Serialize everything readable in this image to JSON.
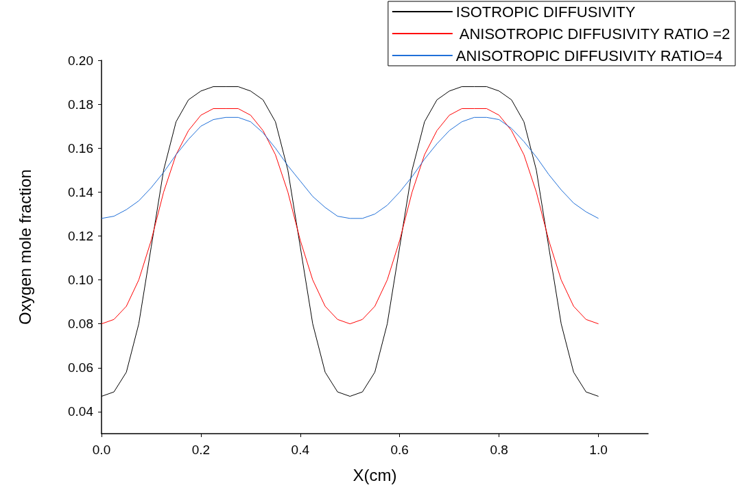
{
  "chart_data": {
    "type": "line",
    "xlabel": "X(cm)",
    "ylabel": "Oxygen mole fraction",
    "x": [
      0,
      0.025,
      0.05,
      0.075,
      0.1,
      0.125,
      0.15,
      0.175,
      0.2,
      0.225,
      0.25,
      0.275,
      0.3,
      0.325,
      0.35,
      0.375,
      0.4,
      0.425,
      0.45,
      0.475,
      0.5,
      0.525,
      0.55,
      0.575,
      0.6,
      0.625,
      0.65,
      0.675,
      0.7,
      0.725,
      0.75,
      0.775,
      0.8,
      0.825,
      0.85,
      0.875,
      0.9,
      0.925,
      0.95,
      0.975,
      1.0
    ],
    "series": [
      {
        "name": "ISOTROPIC DIFFUSIVITY",
        "color": "#000000",
        "values": [
          0.047,
          0.049,
          0.058,
          0.08,
          0.115,
          0.15,
          0.172,
          0.182,
          0.186,
          0.188,
          0.188,
          0.188,
          0.186,
          0.182,
          0.172,
          0.15,
          0.115,
          0.08,
          0.058,
          0.049,
          0.047,
          0.049,
          0.058,
          0.08,
          0.115,
          0.15,
          0.172,
          0.182,
          0.186,
          0.188,
          0.188,
          0.188,
          0.186,
          0.182,
          0.172,
          0.15,
          0.115,
          0.08,
          0.058,
          0.049,
          0.047
        ]
      },
      {
        "name": " ANISOTROPIC DIFFUSIVITY RATIO =2",
        "color": "#ff0000",
        "values": [
          0.08,
          0.082,
          0.088,
          0.1,
          0.118,
          0.14,
          0.157,
          0.168,
          0.175,
          0.178,
          0.178,
          0.178,
          0.175,
          0.168,
          0.157,
          0.14,
          0.118,
          0.1,
          0.088,
          0.082,
          0.08,
          0.082,
          0.088,
          0.1,
          0.118,
          0.14,
          0.157,
          0.168,
          0.175,
          0.178,
          0.178,
          0.178,
          0.175,
          0.168,
          0.157,
          0.14,
          0.118,
          0.1,
          0.088,
          0.082,
          0.08
        ]
      },
      {
        "name": "ANISOTROPIC DIFFUSIVITY RATIO=4",
        "color": "#1f6fd8",
        "values": [
          0.128,
          0.129,
          0.132,
          0.136,
          0.142,
          0.149,
          0.157,
          0.164,
          0.17,
          0.173,
          0.174,
          0.174,
          0.172,
          0.167,
          0.16,
          0.152,
          0.145,
          0.138,
          0.133,
          0.129,
          0.128,
          0.128,
          0.13,
          0.134,
          0.14,
          0.147,
          0.155,
          0.162,
          0.168,
          0.172,
          0.174,
          0.174,
          0.173,
          0.169,
          0.163,
          0.156,
          0.148,
          0.141,
          0.135,
          0.131,
          0.128
        ]
      }
    ],
    "xlim": [
      0,
      1.1
    ],
    "xticks": [
      {
        "value": 0,
        "label": "0.0"
      },
      0.2,
      0.4,
      0.6,
      0.8,
      {
        "value": 1,
        "label": "1.0"
      }
    ],
    "ylim": [
      0.03,
      0.2
    ],
    "yticks": [
      0.04,
      0.06,
      0.08,
      {
        "value": 0.1,
        "label": "0.10"
      },
      0.12,
      0.14,
      0.16,
      0.18,
      {
        "value": 0.2,
        "label": "0.20"
      }
    ],
    "grid": false,
    "legend": "top right",
    "marker": "none",
    "line_style": "solid"
  }
}
